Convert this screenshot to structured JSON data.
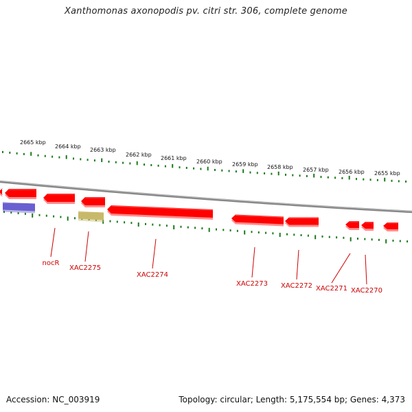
{
  "title": "Xanthomonas axonopodis pv. citri str. 306, complete genome",
  "footer": {
    "accession": "Accession: NC_003919",
    "summary": "Topology: circular; Length: 5,175,554 bp; Genes: 4,373"
  },
  "scale": [
    {
      "label": "2665 kbp"
    },
    {
      "label": "2664 kbp"
    },
    {
      "label": "2663 kbp"
    },
    {
      "label": "2662 kbp"
    },
    {
      "label": "2661 kbp"
    },
    {
      "label": "2660 kbp"
    },
    {
      "label": "2659 kbp"
    },
    {
      "label": "2658 kbp"
    },
    {
      "label": "2657 kbp"
    },
    {
      "label": "2656 kbp"
    },
    {
      "label": "2655 kbp"
    }
  ],
  "genes": [
    {
      "label": "nocR"
    },
    {
      "label": "XAC2275"
    },
    {
      "label": "XAC2274"
    },
    {
      "label": "XAC2273"
    },
    {
      "label": "XAC2272"
    },
    {
      "label": "XAC2271"
    },
    {
      "label": "XAC2270"
    }
  ],
  "colors": {
    "gene": "#ff0000",
    "gene_other": "#6a5fd0",
    "gene_pseudo": "#c8b96a",
    "tick": "#1a7a1a",
    "backbone": "#888888",
    "label": "#cc0000"
  }
}
